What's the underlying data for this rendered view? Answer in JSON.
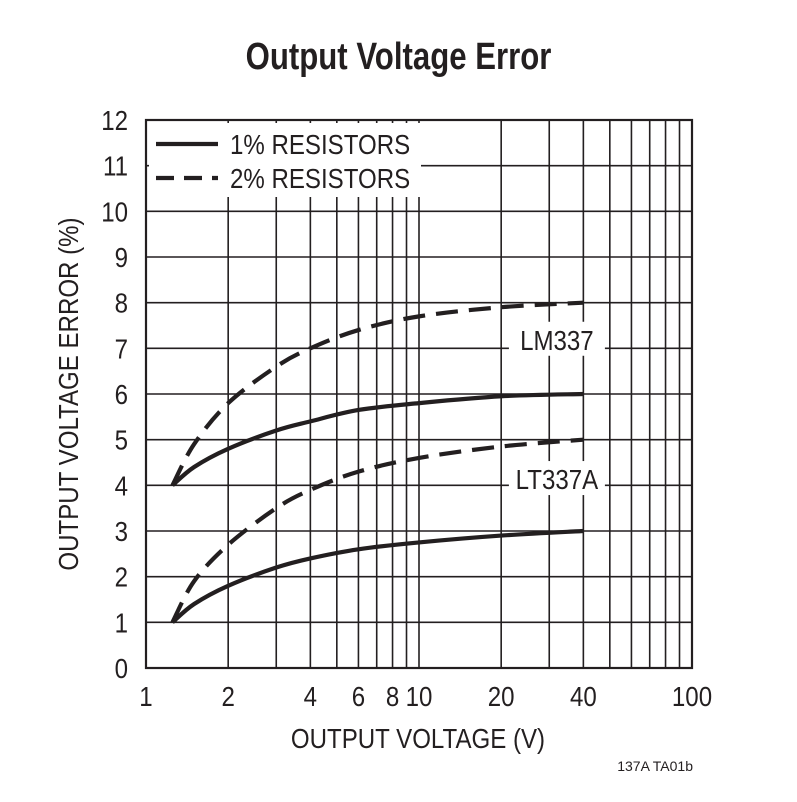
{
  "chart_data": {
    "type": "line",
    "title": "Output Voltage Error",
    "xlabel": "OUTPUT VOLTAGE (V)",
    "ylabel": "OUTPUT VOLTAGE ERROR (%)",
    "x_scale": "log",
    "xlim": [
      1,
      100
    ],
    "ylim": [
      0,
      12
    ],
    "x_ticks": [
      1,
      2,
      4,
      6,
      8,
      10,
      20,
      40,
      100
    ],
    "x_tick_labels": [
      "1",
      "2",
      "4",
      "6",
      "8",
      "10",
      "20",
      "40",
      "100"
    ],
    "y_ticks": [
      0,
      1,
      2,
      3,
      4,
      5,
      6,
      7,
      8,
      9,
      10,
      11,
      12
    ],
    "grid": true,
    "legend": {
      "placement": "top-left",
      "entries": [
        {
          "label": "1% RESISTORS",
          "style": "solid"
        },
        {
          "label": "2% RESISTORS",
          "style": "dashed"
        }
      ]
    },
    "annotations": [
      "LM337",
      "LT337A"
    ],
    "series": [
      {
        "group": "LM337",
        "style": "dashed",
        "x": [
          1.25,
          1.5,
          2,
          3,
          4,
          6,
          10,
          20,
          40
        ],
        "y": [
          4.0,
          4.9,
          5.8,
          6.6,
          7.0,
          7.4,
          7.7,
          7.9,
          8.0
        ]
      },
      {
        "group": "LM337",
        "style": "solid",
        "x": [
          1.25,
          1.5,
          2,
          3,
          4,
          6,
          10,
          20,
          40
        ],
        "y": [
          4.0,
          4.4,
          4.8,
          5.2,
          5.4,
          5.65,
          5.8,
          5.95,
          6.0
        ]
      },
      {
        "group": "LT337A",
        "style": "dashed",
        "x": [
          1.25,
          1.5,
          2,
          3,
          4,
          6,
          10,
          20,
          40
        ],
        "y": [
          1.0,
          1.9,
          2.7,
          3.5,
          3.9,
          4.3,
          4.6,
          4.85,
          5.0
        ]
      },
      {
        "group": "LT337A",
        "style": "solid",
        "x": [
          1.25,
          1.5,
          2,
          3,
          4,
          6,
          10,
          20,
          40
        ],
        "y": [
          1.0,
          1.4,
          1.8,
          2.2,
          2.4,
          2.6,
          2.75,
          2.9,
          3.0
        ]
      }
    ]
  },
  "figure_ref": "137A TA01b",
  "colors": {
    "ink": "#231f20",
    "background": "#ffffff"
  }
}
